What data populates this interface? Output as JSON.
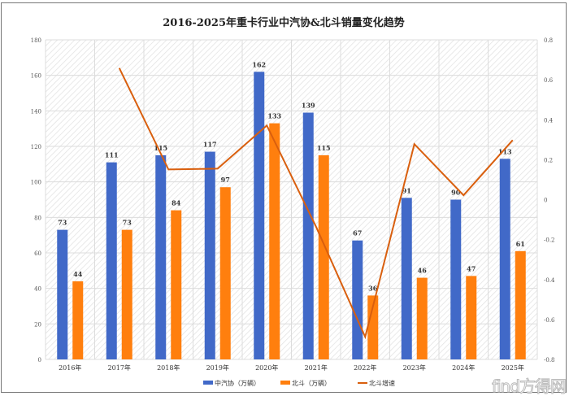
{
  "chart_data": {
    "type": "bar",
    "title": "2016-2025年重卡行业中汽协&北斗销量变化趋势",
    "categories": [
      "2016年",
      "2017年",
      "2018年",
      "2019年",
      "2020年",
      "2021年",
      "2022年",
      "2023年",
      "2024年",
      "2025年"
    ],
    "series": [
      {
        "name": "中汽协（万辆）",
        "type": "bar",
        "axis": "left",
        "color": "#4169C8",
        "values": [
          73,
          111,
          115,
          117,
          162,
          139,
          67,
          91,
          90,
          113
        ]
      },
      {
        "name": "北斗（万辆）",
        "type": "bar",
        "axis": "left",
        "color": "#FF7F0E",
        "values": [
          44,
          73,
          84,
          97,
          133,
          115,
          36,
          46,
          47,
          61
        ]
      },
      {
        "name": "北斗增速",
        "type": "line",
        "axis": "right",
        "color": "#D95F0E",
        "values": [
          null,
          0.659,
          0.151,
          0.155,
          0.371,
          -0.135,
          -0.687,
          0.278,
          0.022,
          0.298
        ]
      }
    ],
    "ylim": [
      0,
      180
    ],
    "yticks": [
      0,
      20,
      40,
      60,
      80,
      100,
      120,
      140,
      160,
      180
    ],
    "y2lim": [
      -0.8,
      0.8
    ],
    "y2ticks": [
      "0.8",
      "0.6",
      "0.4",
      "0.2",
      "0",
      "-0.2",
      "-0.4",
      "-0.6",
      "-0.8"
    ],
    "grid": true,
    "legend": "bottom",
    "data_labels": true
  },
  "watermark": "find方得网"
}
